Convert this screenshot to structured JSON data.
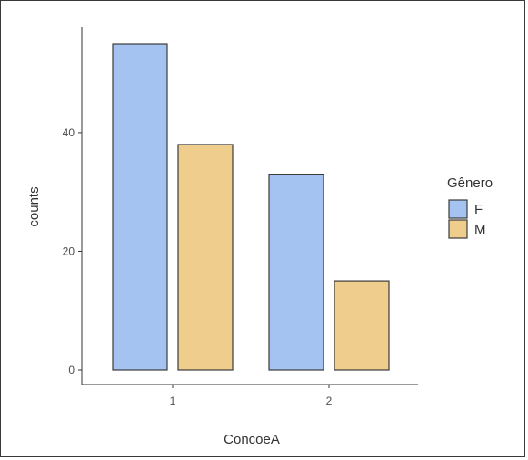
{
  "chart_data": {
    "type": "bar",
    "title": "",
    "xlabel": "ConcoeA",
    "ylabel": "counts",
    "categories": [
      "1",
      "2"
    ],
    "series": [
      {
        "name": "F",
        "values": [
          55,
          33
        ],
        "color": "#a4c3f1"
      },
      {
        "name": "M",
        "values": [
          38,
          15
        ],
        "color": "#efcd8d"
      }
    ],
    "ylim": [
      0,
      55
    ],
    "yticks": [
      0,
      20,
      40
    ],
    "legend": {
      "title": "Gênero",
      "position": "right"
    },
    "grid": false
  }
}
